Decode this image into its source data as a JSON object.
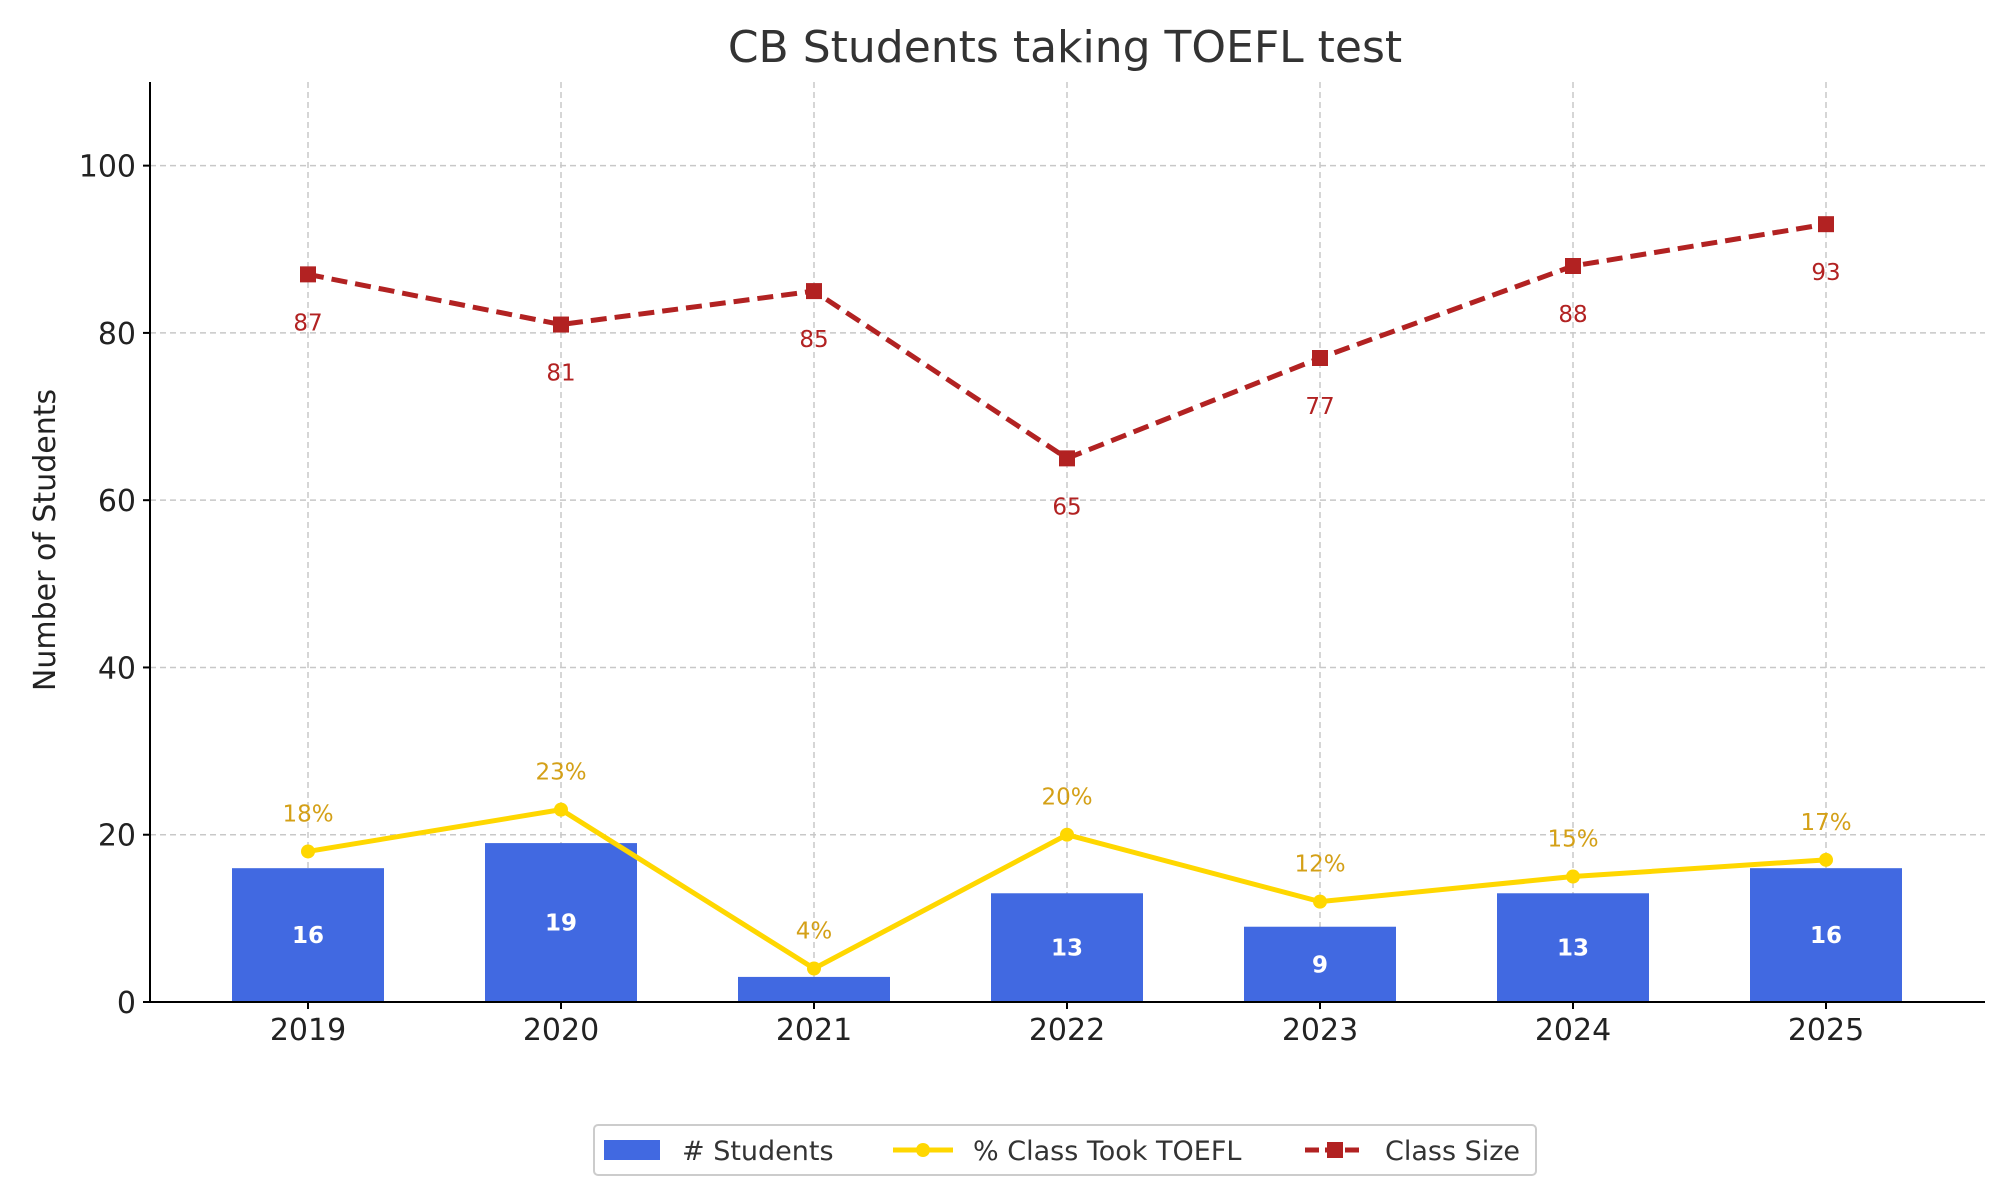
{
  "chart_data": {
    "type": "bar",
    "title": "CB Students taking TOEFL test",
    "ylabel": "Number of Students",
    "xlabel": "",
    "categories": [
      "2019",
      "2020",
      "2021",
      "2022",
      "2023",
      "2024",
      "2025"
    ],
    "ylim": [
      0,
      110
    ],
    "yticks": [
      0,
      20,
      40,
      60,
      80,
      100
    ],
    "grid": true,
    "legend_position": "bottom-center",
    "series": [
      {
        "name": "# Students",
        "type": "bar",
        "color": "#4169E1",
        "values": [
          16,
          19,
          3,
          13,
          9,
          13,
          16
        ],
        "labels": [
          "16",
          "19",
          "",
          "13",
          "9",
          "13",
          "16"
        ]
      },
      {
        "name": "% Class Took TOEFL",
        "type": "line",
        "color": "#FFD700",
        "label_color": "#D4A017",
        "marker": "circle",
        "values": [
          18,
          23,
          4,
          20,
          12,
          15,
          17
        ],
        "labels": [
          "18%",
          "23%",
          "4%",
          "20%",
          "12%",
          "15%",
          "17%"
        ]
      },
      {
        "name": "Class Size",
        "type": "line",
        "color": "#B22222",
        "dashed": true,
        "marker": "square",
        "values": [
          87,
          81,
          85,
          65,
          77,
          88,
          93
        ],
        "labels": [
          "87",
          "81",
          "85",
          "65",
          "77",
          "88",
          "93"
        ]
      }
    ]
  }
}
